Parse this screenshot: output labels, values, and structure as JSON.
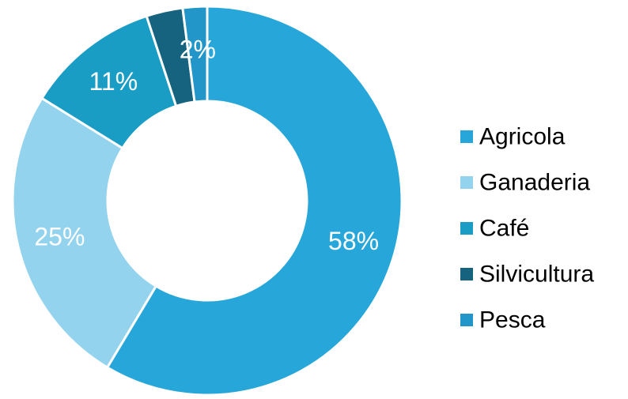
{
  "chart_data": {
    "type": "pie",
    "variant": "donut",
    "categories": [
      "Agricola",
      "Ganaderia",
      "Café",
      "Silvicultura",
      "Pesca"
    ],
    "values": [
      58,
      25,
      11,
      3,
      2
    ],
    "data_labels": [
      "58%",
      "25%",
      "11%",
      "",
      "2%"
    ],
    "colors": [
      "#27A6DA",
      "#93D3EE",
      "#1A9DC5",
      "#15637E",
      "#2296C9"
    ],
    "title": "",
    "legend_position": "right",
    "start_angle": "12 o'clock, clockwise"
  }
}
